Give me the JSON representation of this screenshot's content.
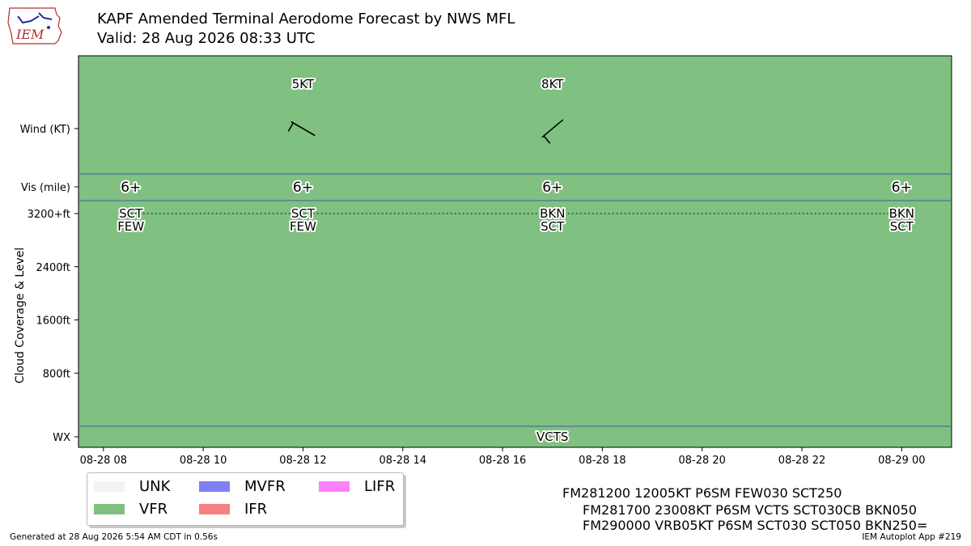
{
  "header": {
    "title": "KAPF Amended Terminal Aerodome Forecast by NWS MFL",
    "valid": "Valid: 28 Aug 2026 08:33 UTC",
    "logo_text": "IEM"
  },
  "chart_data": {
    "type": "scatter",
    "xlim": [
      "2026-08-28 07:30",
      "2026-08-29 01:00"
    ],
    "x_ticks": [
      {
        "t": "2026-08-28 08:00",
        "label": "08-28 08"
      },
      {
        "t": "2026-08-28 10:00",
        "label": "08-28 10"
      },
      {
        "t": "2026-08-28 12:00",
        "label": "08-28 12"
      },
      {
        "t": "2026-08-28 14:00",
        "label": "08-28 14"
      },
      {
        "t": "2026-08-28 16:00",
        "label": "08-28 16"
      },
      {
        "t": "2026-08-28 18:00",
        "label": "08-28 18"
      },
      {
        "t": "2026-08-28 20:00",
        "label": "08-28 20"
      },
      {
        "t": "2026-08-28 22:00",
        "label": "08-28 22"
      },
      {
        "t": "2026-08-29 00:00",
        "label": "08-29 00"
      }
    ],
    "y_ticks": [
      {
        "label": "Wind (KT)",
        "panel": "wind"
      },
      {
        "label": "Vis (mile)",
        "panel": "vis"
      },
      {
        "label": "3200+ft",
        "value": 3200
      },
      {
        "label": "2400ft",
        "value": 2400
      },
      {
        "label": "1600ft",
        "value": 1600
      },
      {
        "label": "800ft",
        "value": 800
      },
      {
        "label": "WX",
        "panel": "wx"
      }
    ],
    "ylabel": "Cloud Coverage & Level",
    "ylim_cloud": [
      0,
      3200
    ],
    "background_category": "VFR",
    "wind": [
      {
        "t": "2026-08-28 12:00",
        "dir": 120,
        "speed": 5,
        "label": "5KT"
      },
      {
        "t": "2026-08-28 17:00",
        "dir": 230,
        "speed": 8,
        "label": "8KT"
      }
    ],
    "visibility": [
      {
        "t": "2026-08-28 08:33",
        "label": "6+"
      },
      {
        "t": "2026-08-28 12:00",
        "label": "6+"
      },
      {
        "t": "2026-08-28 17:00",
        "label": "6+"
      },
      {
        "t": "2026-08-29 00:00",
        "label": "6+"
      }
    ],
    "clouds": [
      {
        "t": "2026-08-28 08:33",
        "layers": [
          "SCT",
          "FEW"
        ],
        "level": 3200
      },
      {
        "t": "2026-08-28 12:00",
        "layers": [
          "SCT",
          "FEW"
        ],
        "level": 3200
      },
      {
        "t": "2026-08-28 17:00",
        "layers": [
          "BKN",
          "SCT"
        ],
        "level": 3200
      },
      {
        "t": "2026-08-29 00:00",
        "layers": [
          "BKN",
          "SCT"
        ],
        "level": 3200
      }
    ],
    "weather": [
      {
        "t": "2026-08-28 17:00",
        "label": "VCTS"
      }
    ]
  },
  "legend": [
    {
      "label": "UNK",
      "color": "#f3f3f3"
    },
    {
      "label": "MVFR",
      "color": "#8080f5"
    },
    {
      "label": "LIFR",
      "color": "#ff80ff"
    },
    {
      "label": "VFR",
      "color": "#80c080"
    },
    {
      "label": "IFR",
      "color": "#f78080"
    }
  ],
  "taf": {
    "lines": [
      "FM281200 12005KT P6SM FEW030 SCT250",
      "FM281700 23008KT P6SM VCTS SCT030CB BKN050",
      "FM290000 VRB05KT P6SM SCT030 SCT050 BKN250="
    ]
  },
  "footer": {
    "generated": "Generated at 28 Aug 2026 5:54 AM CDT in 0.56s",
    "app": "IEM Autoplot App #219"
  },
  "colors": {
    "vfr": "#80c080",
    "divider": "#3a5fa0",
    "cloud_line": "#2a7a40"
  }
}
